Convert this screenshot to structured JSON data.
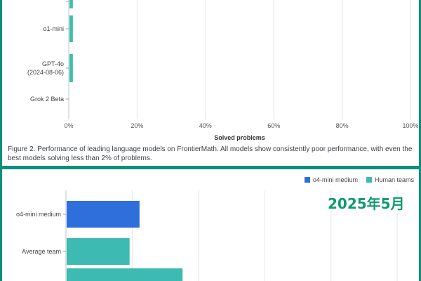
{
  "chart_data": [
    {
      "type": "bar",
      "orientation": "horizontal",
      "categories": [
        "",
        "o1-mini",
        "GPT-4o\n(2024-08-06)",
        "Grok 2 Beta"
      ],
      "values": [
        1.0,
        1.0,
        1.0,
        0.0
      ],
      "xlabel": "Solved problems",
      "xlim": [
        0,
        100
      ],
      "xticks": [
        "0%",
        "20%",
        "40%",
        "60%",
        "80%",
        "100%"
      ],
      "grid": true,
      "bar_color": "#3dbfad",
      "caption": "Figure 2. Performance of leading language models on FrontierMath. All models show consistently poor performance, with even the best models solving less than 2% of problems."
    },
    {
      "type": "bar",
      "orientation": "horizontal",
      "categories": [
        "o4-mini medium",
        "Average team",
        ""
      ],
      "values": [
        22,
        19,
        35
      ],
      "series_colors": [
        "#2f6fdc",
        "#3dbab2",
        "#3dbab2"
      ],
      "legend": [
        {
          "label": "o4-mini medium",
          "color": "#2f6fdc"
        },
        {
          "label": "Human teams",
          "color": "#3dbab2"
        }
      ],
      "legend_position": "top-right",
      "xlim": [
        0,
        100
      ],
      "grid": true,
      "annotation": "2025年5月"
    }
  ]
}
